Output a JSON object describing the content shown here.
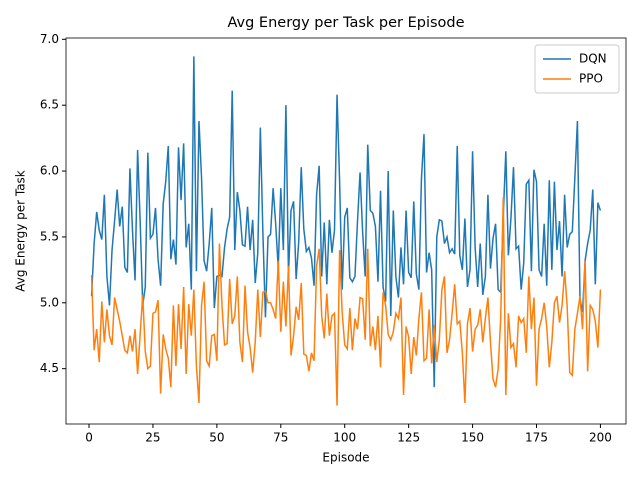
{
  "chart_data": {
    "type": "line",
    "title": "Avg Energy per Task per Episode",
    "x_label": "Episode",
    "y_label": "Avg Energy per Task",
    "x": [
      1,
      2,
      3,
      4,
      5,
      6,
      7,
      8,
      9,
      10,
      11,
      12,
      13,
      14,
      15,
      16,
      17,
      18,
      19,
      20,
      21,
      22,
      23,
      24,
      25,
      26,
      27,
      28,
      29,
      30,
      31,
      32,
      33,
      34,
      35,
      36,
      37,
      38,
      39,
      40,
      41,
      42,
      43,
      44,
      45,
      46,
      47,
      48,
      49,
      50,
      51,
      52,
      53,
      54,
      55,
      56,
      57,
      58,
      59,
      60,
      61,
      62,
      63,
      64,
      65,
      66,
      67,
      68,
      69,
      70,
      71,
      72,
      73,
      74,
      75,
      76,
      77,
      78,
      79,
      80,
      81,
      82,
      83,
      84,
      85,
      86,
      87,
      88,
      89,
      90,
      91,
      92,
      93,
      94,
      95,
      96,
      97,
      98,
      99,
      100,
      101,
      102,
      103,
      104,
      105,
      106,
      107,
      108,
      109,
      110,
      111,
      112,
      113,
      114,
      115,
      116,
      117,
      118,
      119,
      120,
      121,
      122,
      123,
      124,
      125,
      126,
      127,
      128,
      129,
      130,
      131,
      132,
      133,
      134,
      135,
      136,
      137,
      138,
      139,
      140,
      141,
      142,
      143,
      144,
      145,
      146,
      147,
      148,
      149,
      150,
      151,
      152,
      153,
      154,
      155,
      156,
      157,
      158,
      159,
      160,
      161,
      162,
      163,
      164,
      165,
      166,
      167,
      168,
      169,
      170,
      171,
      172,
      173,
      174,
      175,
      176,
      177,
      178,
      179,
      180,
      181,
      182,
      183,
      184,
      185,
      186,
      187,
      188,
      189,
      190,
      191,
      192,
      193,
      194,
      195,
      196,
      197,
      198,
      199,
      200
    ],
    "series": [
      {
        "name": "DQN",
        "color": "#1f77b4",
        "values": [
          5.05,
          5.45,
          5.69,
          5.55,
          5.48,
          5.82,
          5.2,
          4.98,
          5.4,
          5.62,
          5.86,
          5.58,
          5.73,
          5.27,
          5.23,
          6.02,
          5.55,
          5.17,
          6.16,
          5.62,
          4.98,
          5.12,
          6.14,
          5.49,
          5.52,
          5.72,
          5.33,
          5.13,
          5.75,
          5.92,
          6.19,
          5.33,
          5.48,
          5.29,
          6.18,
          5.78,
          6.21,
          5.42,
          5.6,
          5.1,
          6.87,
          5.24,
          6.38,
          5.95,
          5.32,
          5.24,
          5.45,
          5.72,
          4.96,
          5.2,
          5.21,
          5.2,
          5.42,
          5.56,
          5.65,
          6.61,
          5.4,
          5.84,
          5.7,
          5.44,
          5.43,
          5.73,
          5.4,
          5.63,
          5.15,
          5.38,
          6.33,
          5.53,
          4.89,
          5.5,
          5.52,
          5.87,
          5.6,
          5.26,
          5.87,
          5.4,
          6.5,
          5.22,
          5.7,
          5.77,
          5.18,
          5.46,
          6.03,
          5.56,
          5.39,
          5.42,
          5.34,
          5.13,
          5.82,
          6.04,
          5.2,
          5.61,
          5.14,
          5.63,
          5.38,
          5.55,
          6.58,
          5.92,
          5.1,
          5.65,
          5.72,
          5.19,
          5.16,
          5.2,
          5.62,
          5.99,
          5.54,
          5.2,
          6.2,
          5.7,
          5.68,
          5.58,
          5.16,
          5.85,
          5.12,
          5.01,
          6.0,
          4.9,
          5.7,
          5.2,
          5.04,
          5.42,
          5.14,
          5.7,
          5.23,
          5.19,
          5.77,
          5.22,
          5.1,
          5.94,
          6.28,
          5.23,
          5.38,
          5.25,
          4.36,
          5.5,
          5.63,
          5.62,
          5.45,
          5.5,
          5.38,
          5.41,
          5.37,
          6.19,
          5.36,
          5.25,
          5.64,
          5.12,
          5.25,
          6.15,
          5.42,
          5.12,
          5.45,
          5.06,
          5.2,
          5.82,
          5.26,
          5.49,
          5.6,
          5.1,
          5.08,
          5.66,
          6.15,
          5.36,
          5.64,
          6.03,
          5.41,
          5.43,
          5.1,
          5.3,
          5.9,
          5.93,
          5.24,
          6.01,
          5.92,
          5.25,
          5.2,
          5.6,
          5.13,
          5.93,
          5.25,
          5.92,
          5.4,
          5.62,
          5.2,
          5.82,
          5.42,
          5.52,
          5.54,
          5.95,
          6.38,
          5.03,
          4.93,
          5.32,
          5.45,
          5.55,
          5.86,
          5.14,
          5.76,
          5.7
        ]
      },
      {
        "name": "PPO",
        "color": "#ff7f0e",
        "values": [
          5.21,
          4.64,
          4.8,
          4.55,
          5.01,
          4.7,
          4.95,
          4.75,
          4.68,
          5.04,
          4.95,
          4.86,
          4.75,
          4.64,
          4.62,
          4.75,
          4.63,
          4.8,
          4.46,
          4.76,
          5.06,
          4.63,
          4.5,
          4.52,
          4.92,
          4.93,
          5.02,
          4.31,
          4.76,
          4.65,
          4.58,
          4.36,
          4.98,
          4.52,
          4.99,
          4.65,
          5.12,
          4.46,
          4.99,
          4.75,
          5.1,
          4.52,
          4.24,
          4.98,
          5.16,
          4.56,
          4.52,
          4.75,
          4.76,
          4.56,
          5.45,
          4.98,
          4.68,
          4.69,
          5.18,
          4.84,
          4.9,
          5.2,
          4.7,
          4.55,
          5.13,
          4.78,
          4.66,
          4.47,
          4.7,
          5.1,
          4.74,
          5.08,
          5.09,
          5.0,
          5.0,
          4.95,
          4.88,
          5.32,
          4.78,
          5.16,
          4.82,
          5.28,
          4.6,
          4.75,
          4.97,
          4.87,
          5.15,
          4.61,
          4.6,
          4.48,
          4.62,
          4.56,
          5.28,
          5.41,
          4.9,
          4.73,
          5.07,
          4.75,
          4.9,
          4.92,
          4.22,
          5.4,
          4.93,
          4.68,
          4.65,
          4.96,
          4.64,
          4.88,
          4.8,
          5.04,
          5.03,
          4.72,
          5.41,
          4.67,
          4.82,
          4.64,
          4.9,
          4.51,
          5.08,
          4.98,
          4.76,
          4.72,
          4.78,
          4.92,
          4.88,
          5.04,
          4.3,
          4.82,
          4.74,
          4.46,
          4.74,
          4.6,
          4.88,
          5.08,
          4.56,
          4.58,
          4.95,
          4.54,
          4.83,
          4.55,
          4.72,
          5.1,
          5.2,
          4.62,
          4.72,
          4.92,
          5.14,
          4.84,
          4.86,
          4.62,
          4.24,
          4.84,
          4.96,
          4.63,
          4.8,
          4.83,
          4.95,
          4.7,
          4.88,
          5.04,
          4.7,
          4.42,
          4.36,
          4.5,
          4.88,
          5.8,
          4.3,
          4.92,
          4.66,
          4.69,
          4.51,
          4.9,
          4.85,
          4.88,
          4.62,
          5.2,
          4.8,
          5.04,
          4.37,
          4.8,
          4.88,
          5.0,
          4.82,
          4.51,
          4.7,
          5.0,
          5.05,
          4.85,
          4.98,
          5.24,
          4.97,
          4.47,
          4.45,
          4.8,
          4.92,
          5.05,
          4.8,
          5.32,
          4.48,
          4.98,
          4.95,
          4.86,
          4.66,
          5.1
        ]
      }
    ],
    "xlim": [
      -9,
      210
    ],
    "xticks": [
      0,
      25,
      50,
      75,
      100,
      125,
      150,
      175,
      200
    ],
    "ylim": [
      4.08,
      7.01
    ],
    "yticks": [
      4.5,
      {
        "value": 5,
        "label": "5.0"
      },
      5.5,
      {
        "value": 6,
        "label": "6.0"
      },
      6.5,
      {
        "value": 7,
        "label": "7.0"
      }
    ],
    "legend": "upper right"
  }
}
